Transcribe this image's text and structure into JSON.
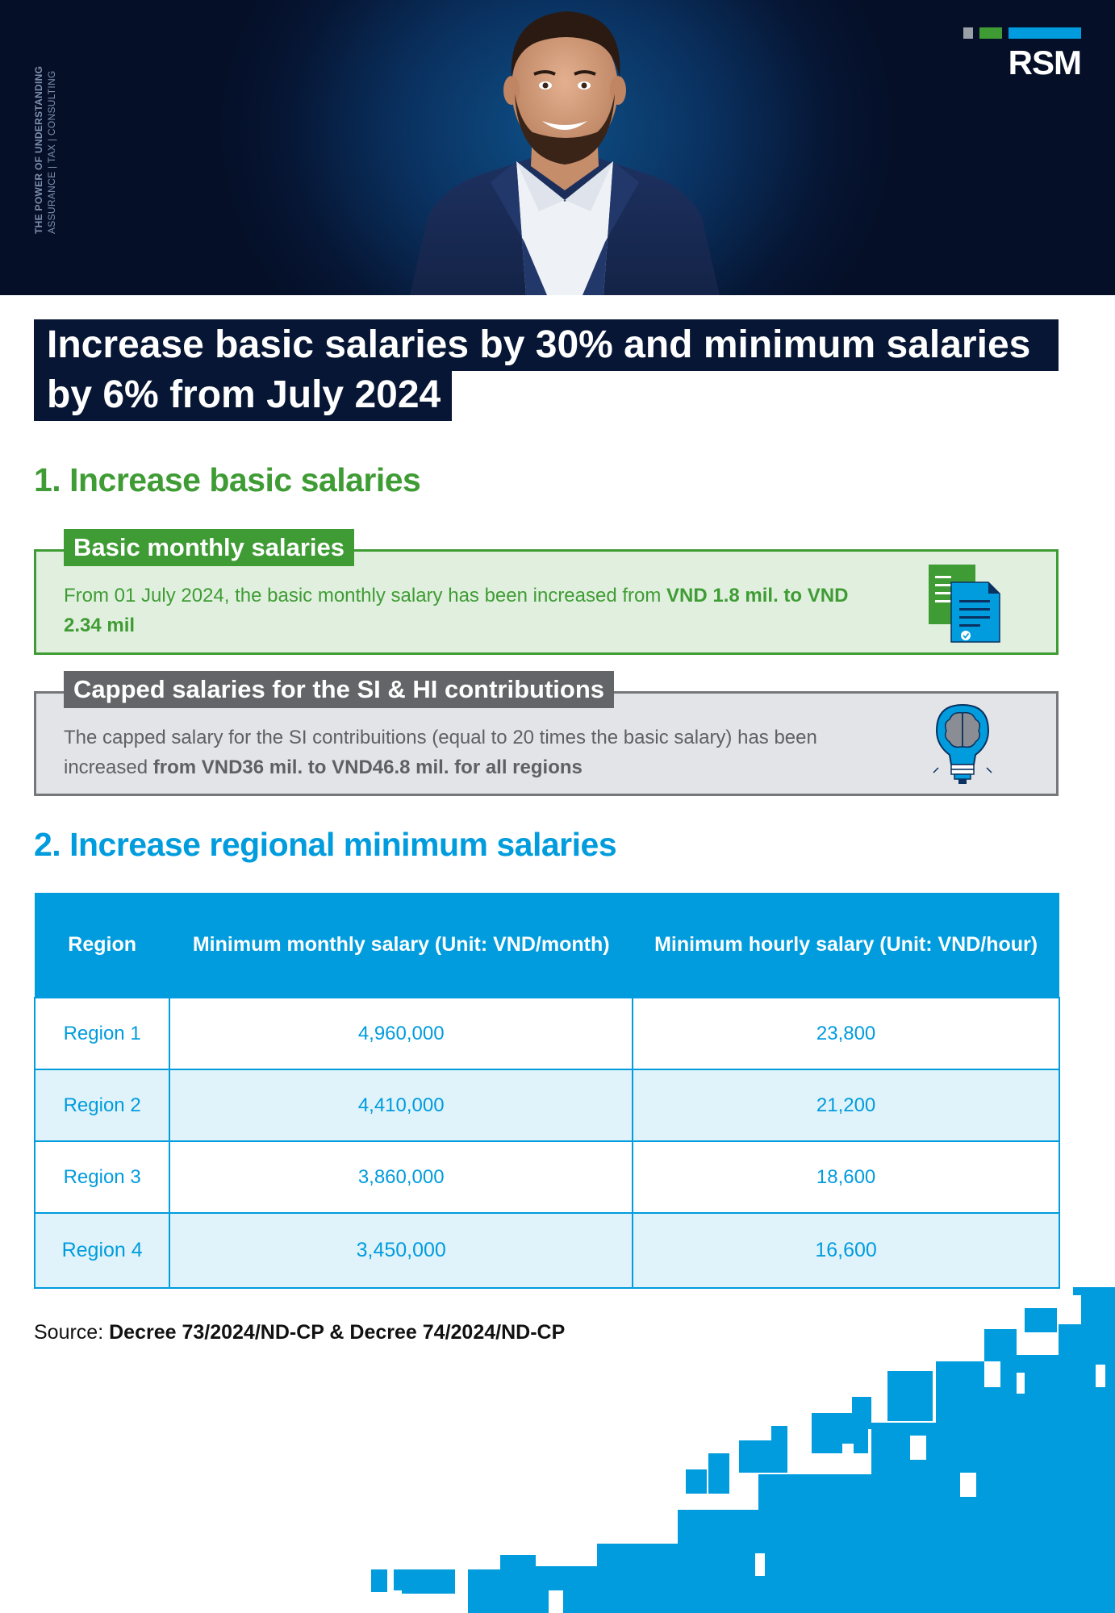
{
  "hero": {
    "tagline_line1": "THE POWER OF UNDERSTANDING",
    "tagline_line2": "ASSURANCE | TAX | CONSULTING",
    "logo_text": "RSM",
    "logo_colors": [
      "#9aa0a8",
      "#3f9c35",
      "#009cde"
    ]
  },
  "title": {
    "line1": "Increase basic salaries by 30% and minimum salaries",
    "line2": "by 6% from July 2024"
  },
  "section1": {
    "heading": "1. Increase basic salaries",
    "card_basic": {
      "label": "Basic monthly salaries",
      "text_prefix": "From 01 July 2024, the basic monthly salary has been increased from ",
      "text_bold": "VND 1.8 mil. to VND 2.34 mil",
      "icon": "documents-icon"
    },
    "card_capped": {
      "label": "Capped salaries for the SI & HI contributions",
      "text_prefix": "The capped salary for the SI contribuitions (equal to 20 times the basic salary) has been increased ",
      "text_bold": "from VND36 mil. to VND46.8 mil. for all regions",
      "icon": "lightbulb-brain-icon"
    }
  },
  "section2": {
    "heading": "2. Increase regional minimum salaries",
    "table": {
      "headers": [
        "Region",
        "Minimum monthly salary (Unit: VND/month)",
        "Minimum hourly salary (Unit: VND/hour)"
      ],
      "rows": [
        [
          "Region 1",
          "4,960,000",
          "23,800"
        ],
        [
          "Region 2",
          "4,410,000",
          "21,200"
        ],
        [
          "Region 3",
          "3,860,000",
          "18,600"
        ],
        [
          "Region 4",
          "3,450,000",
          "16,600"
        ]
      ]
    }
  },
  "source": {
    "label": "Source: ",
    "value": "Decree 73/2024/ND-CP & Decree 74/2024/ND-CP"
  },
  "colors": {
    "navy": "#061634",
    "green": "#3f9c35",
    "blue": "#009cde",
    "grey": "#646569"
  }
}
